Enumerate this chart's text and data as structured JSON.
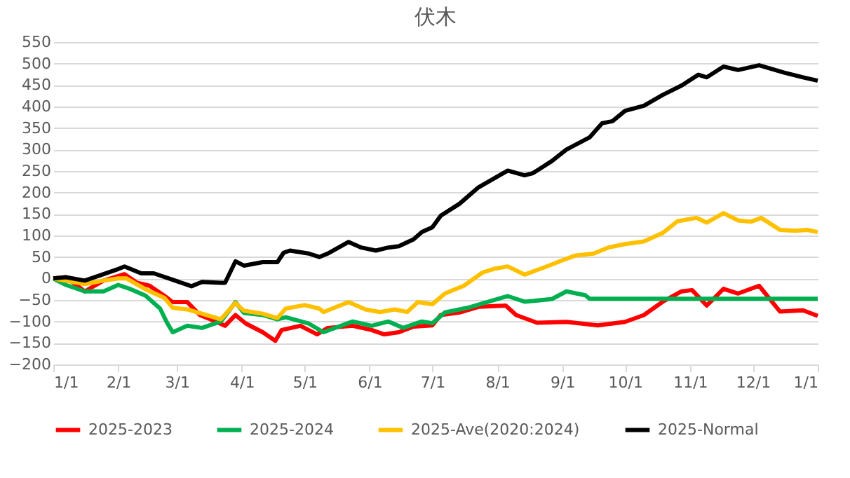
{
  "chart_data": {
    "type": "line",
    "title": "伏木",
    "xlim": [
      "2025-01-01",
      "2026-01-01"
    ],
    "xticks": [
      {
        "value": "2025-01-01",
        "label": "1/1"
      },
      {
        "value": "2025-02-01",
        "label": "2/1"
      },
      {
        "value": "2025-03-01",
        "label": "3/1"
      },
      {
        "value": "2025-04-01",
        "label": "4/1"
      },
      {
        "value": "2025-05-01",
        "label": "5/1"
      },
      {
        "value": "2025-06-01",
        "label": "6/1"
      },
      {
        "value": "2025-07-01",
        "label": "7/1"
      },
      {
        "value": "2025-08-01",
        "label": "8/1"
      },
      {
        "value": "2025-09-01",
        "label": "9/1"
      },
      {
        "value": "2025-10-01",
        "label": "10/1"
      },
      {
        "value": "2025-11-01",
        "label": "11/1"
      },
      {
        "value": "2025-12-01",
        "label": "12/1"
      },
      {
        "value": "2026-01-01",
        "label": "1/1"
      }
    ],
    "ylim": [
      -200,
      550
    ],
    "yticks": [
      -200,
      -150,
      -100,
      -50,
      0,
      50,
      100,
      150,
      200,
      250,
      300,
      350,
      400,
      450,
      500,
      550
    ],
    "grid": "y",
    "legend": "bottom",
    "marker": "none",
    "line_style": "solid",
    "series": [
      {
        "name": "2025-2023",
        "color": "#ff0000",
        "x": [
          "2025-01-01",
          "2025-01-07",
          "2025-01-16",
          "2025-01-25",
          "2025-02-04",
          "2025-02-10",
          "2025-02-16",
          "2025-02-23",
          "2025-02-27",
          "2025-03-06",
          "2025-03-12",
          "2025-03-17",
          "2025-03-24",
          "2025-03-29",
          "2025-04-03",
          "2025-04-11",
          "2025-04-17",
          "2025-04-20",
          "2025-04-29",
          "2025-05-07",
          "2025-05-12",
          "2025-05-24",
          "2025-06-02",
          "2025-06-08",
          "2025-06-15",
          "2025-06-22",
          "2025-07-01",
          "2025-07-05",
          "2025-07-14",
          "2025-07-23",
          "2025-08-05",
          "2025-08-10",
          "2025-08-20",
          "2025-09-03",
          "2025-09-18",
          "2025-10-01",
          "2025-10-10",
          "2025-10-19",
          "2025-10-28",
          "2025-11-02",
          "2025-11-09",
          "2025-11-17",
          "2025-11-24",
          "2025-12-04",
          "2025-12-14",
          "2025-12-25",
          "2026-01-01"
        ],
        "values": [
          0,
          3,
          -30,
          -5,
          10,
          -10,
          -17,
          -40,
          -55,
          -55,
          -85,
          -95,
          -110,
          -85,
          -105,
          -125,
          -145,
          -120,
          -110,
          -130,
          -115,
          -110,
          -120,
          -130,
          -125,
          -112,
          -109,
          -85,
          -79,
          -66,
          -63,
          -85,
          -103,
          -101,
          -109,
          -101,
          -85,
          -54,
          -30,
          -27,
          -63,
          -24,
          -35,
          -17,
          -77,
          -74,
          -87
        ]
      },
      {
        "name": "2025-2024",
        "color": "#00b050",
        "x": [
          "2025-01-01",
          "2025-01-07",
          "2025-01-16",
          "2025-01-25",
          "2025-02-01",
          "2025-02-07",
          "2025-02-14",
          "2025-02-21",
          "2025-02-24",
          "2025-02-27",
          "2025-03-06",
          "2025-03-13",
          "2025-03-22",
          "2025-03-29",
          "2025-04-02",
          "2025-04-11",
          "2025-04-18",
          "2025-04-22",
          "2025-05-03",
          "2025-05-10",
          "2025-05-24",
          "2025-06-02",
          "2025-06-10",
          "2025-06-17",
          "2025-06-26",
          "2025-07-01",
          "2025-07-07",
          "2025-07-18",
          "2025-07-27",
          "2025-08-06",
          "2025-08-14",
          "2025-08-27",
          "2025-09-03",
          "2025-09-12",
          "2025-09-14",
          "2026-01-01"
        ],
        "values": [
          0,
          -15,
          -30,
          -30,
          -15,
          -25,
          -40,
          -70,
          -100,
          -125,
          -110,
          -115,
          -100,
          -55,
          -80,
          -85,
          -95,
          -90,
          -105,
          -125,
          -100,
          -110,
          -100,
          -115,
          -100,
          -104,
          -79,
          -68,
          -55,
          -41,
          -54,
          -48,
          -30,
          -39,
          -47,
          -47
        ]
      },
      {
        "name": "2025-Ave(2020:2024)",
        "color": "#ffc000",
        "x": [
          "2025-01-01",
          "2025-01-16",
          "2025-01-25",
          "2025-02-01",
          "2025-02-05",
          "2025-02-14",
          "2025-02-23",
          "2025-02-27",
          "2025-03-06",
          "2025-03-15",
          "2025-03-22",
          "2025-03-29",
          "2025-04-02",
          "2025-04-11",
          "2025-04-18",
          "2025-04-22",
          "2025-05-01",
          "2025-05-08",
          "2025-05-10",
          "2025-05-22",
          "2025-05-30",
          "2025-06-06",
          "2025-06-13",
          "2025-06-19",
          "2025-06-24",
          "2025-07-01",
          "2025-07-07",
          "2025-07-16",
          "2025-07-25",
          "2025-07-31",
          "2025-08-06",
          "2025-08-14",
          "2025-08-23",
          "2025-09-01",
          "2025-09-07",
          "2025-09-16",
          "2025-09-23",
          "2025-10-01",
          "2025-10-10",
          "2025-10-19",
          "2025-10-26",
          "2025-11-04",
          "2025-11-09",
          "2025-11-17",
          "2025-11-24",
          "2025-11-30",
          "2025-12-05",
          "2025-12-14",
          "2025-12-21",
          "2025-12-27",
          "2026-01-01"
        ],
        "values": [
          0,
          -13,
          -5,
          0,
          0,
          -25,
          -45,
          -68,
          -72,
          -85,
          -95,
          -57,
          -75,
          -82,
          -92,
          -70,
          -62,
          -70,
          -78,
          -55,
          -72,
          -78,
          -72,
          -78,
          -55,
          -60,
          -35,
          -17,
          14,
          23,
          28,
          9,
          25,
          42,
          53,
          58,
          72,
          80,
          86,
          106,
          133,
          141,
          130,
          152,
          135,
          132,
          141,
          113,
          111,
          113,
          108
        ]
      },
      {
        "name": "2025-Normal",
        "color": "#000000",
        "x": [
          "2025-01-01",
          "2025-01-07",
          "2025-01-16",
          "2025-01-25",
          "2025-02-01",
          "2025-02-04",
          "2025-02-12",
          "2025-02-18",
          "2025-03-08",
          "2025-03-13",
          "2025-03-22",
          "2025-03-24",
          "2025-03-29",
          "2025-04-02",
          "2025-04-11",
          "2025-04-18",
          "2025-04-21",
          "2025-04-24",
          "2025-05-03",
          "2025-05-08",
          "2025-05-12",
          "2025-05-22",
          "2025-05-28",
          "2025-06-04",
          "2025-06-10",
          "2025-06-15",
          "2025-06-22",
          "2025-06-26",
          "2025-07-01",
          "2025-07-05",
          "2025-07-14",
          "2025-07-23",
          "2025-08-06",
          "2025-08-14",
          "2025-08-18",
          "2025-08-27",
          "2025-09-03",
          "2025-09-14",
          "2025-09-20",
          "2025-09-25",
          "2025-10-01",
          "2025-10-10",
          "2025-10-19",
          "2025-10-28",
          "2025-11-05",
          "2025-11-09",
          "2025-11-17",
          "2025-11-24",
          "2025-12-04",
          "2025-12-16",
          "2025-12-25",
          "2026-01-01"
        ],
        "values": [
          0,
          3,
          -5,
          10,
          22,
          28,
          12,
          12,
          -18,
          -8,
          -10,
          -10,
          40,
          30,
          38,
          38,
          60,
          65,
          58,
          50,
          58,
          85,
          72,
          65,
          72,
          75,
          91,
          108,
          119,
          146,
          174,
          212,
          251,
          240,
          245,
          273,
          300,
          328,
          361,
          366,
          390,
          402,
          427,
          449,
          474,
          468,
          493,
          485,
          496,
          479,
          468,
          460
        ]
      }
    ]
  }
}
